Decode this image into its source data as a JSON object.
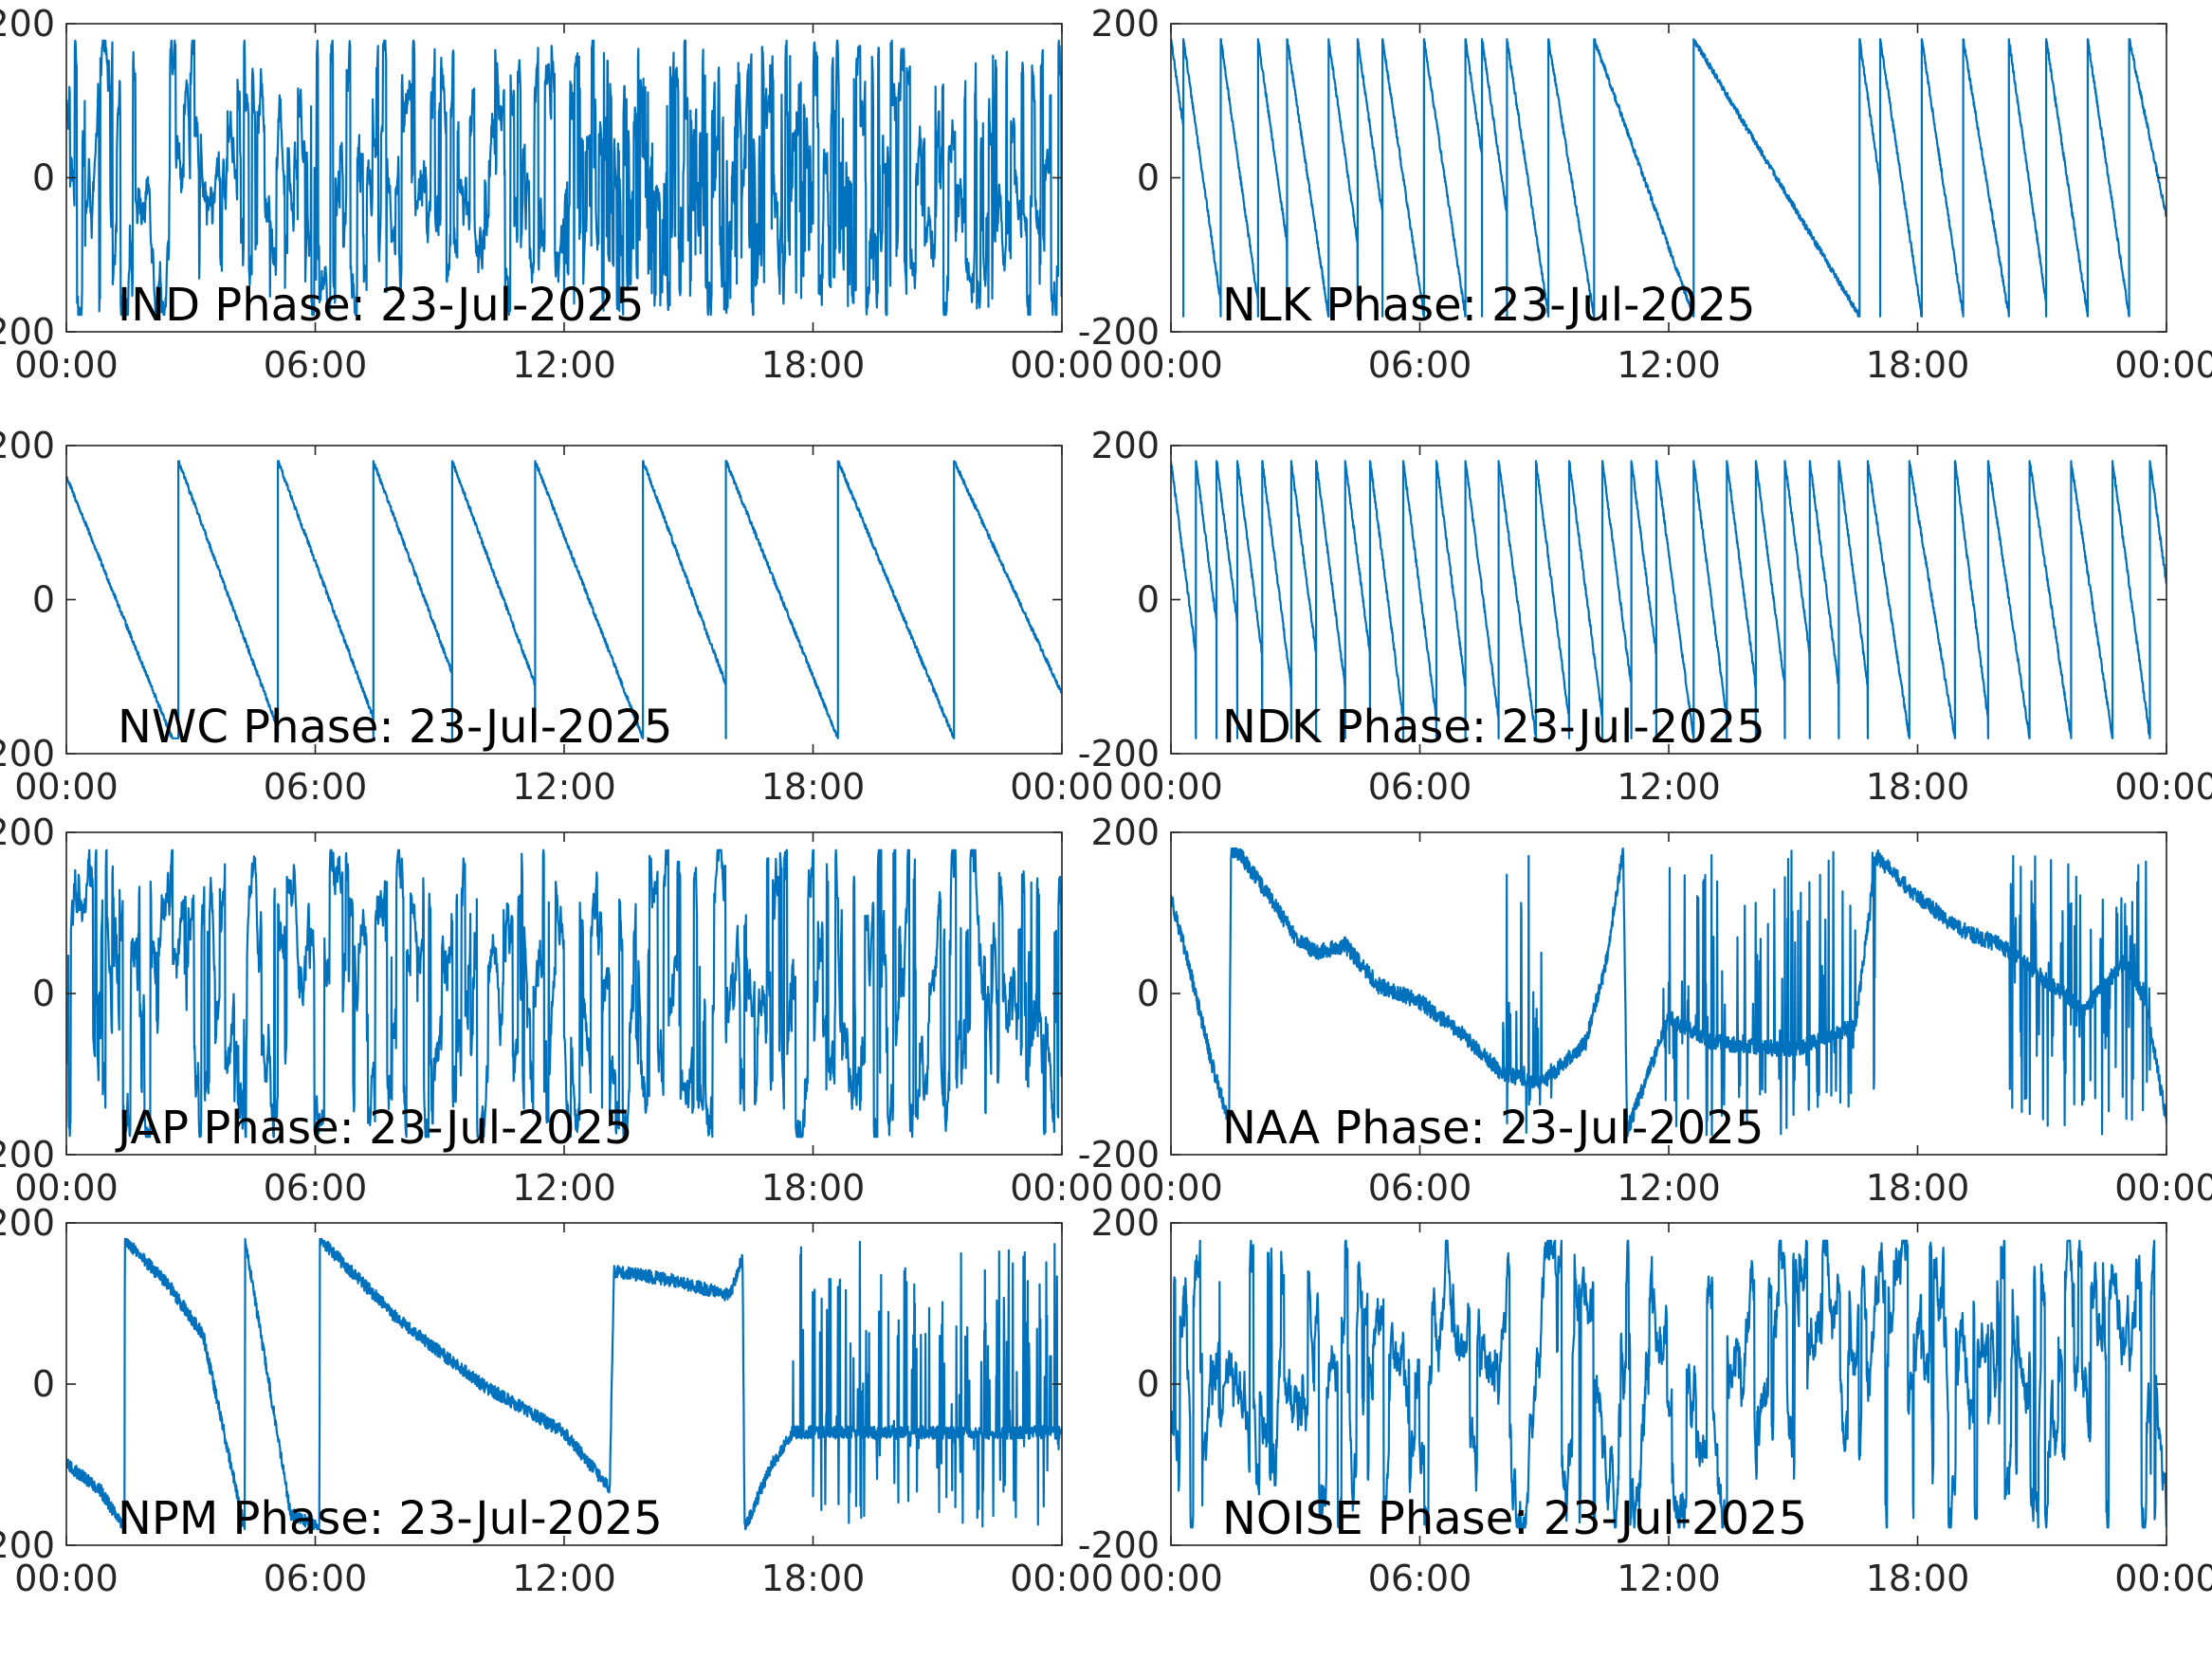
{
  "line_color": "#0072BD",
  "chart_data": [
    {
      "type": "line",
      "label": "IND Phase: 23-Jul-2025",
      "x_ticks": [
        "00:00",
        "06:00",
        "12:00",
        "18:00",
        "00:00"
      ],
      "y_ticks": [
        "-200",
        "0",
        "200"
      ],
      "ylim": [
        -200,
        200
      ],
      "xlim_hours": [
        0,
        24
      ],
      "grid": false,
      "pattern": "dense-noise",
      "segments": [
        {
          "t0": 0,
          "t1": 12,
          "change_rate": 12
        },
        {
          "t0": 12,
          "t1": 19,
          "change_rate": 40
        },
        {
          "t0": 19,
          "t1": 24,
          "change_rate": 20
        }
      ]
    },
    {
      "type": "line",
      "label": "NLK Phase: 23-Jul-2025",
      "x_ticks": [
        "00:00",
        "06:00",
        "12:00",
        "18:00",
        "00:00"
      ],
      "y_ticks": [
        "-200",
        "0",
        "200"
      ],
      "ylim": [
        -200,
        200
      ],
      "xlim_hours": [
        0,
        24
      ],
      "grid": false,
      "pattern": "sawtooth",
      "wrap_times": [
        0.3,
        1.2,
        2.1,
        2.8,
        3.8,
        4.5,
        5.1,
        6.1,
        7.1,
        7.5,
        8.1,
        9.1,
        10.2,
        12.6,
        16.6,
        17.1,
        18.1,
        19.1,
        20.2,
        21.1,
        22.1,
        23.1
      ],
      "drift_per_hour": -380,
      "noise": 4
    },
    {
      "type": "line",
      "label": "NWC Phase: 23-Jul-2025",
      "x_ticks": [
        "00:00",
        "06:00",
        "12:00",
        "18:00",
        "00:00"
      ],
      "y_ticks": [
        "-200",
        "0",
        "200"
      ],
      "ylim": [
        -200,
        200
      ],
      "xlim_hours": [
        0,
        24
      ],
      "grid": false,
      "pattern": "sawtooth",
      "wrap_times": [
        2.7,
        5.1,
        7.4,
        9.3,
        11.3,
        13.9,
        15.9,
        18.6,
        21.4
      ],
      "start_value": 160,
      "drift_per_hour": -145,
      "noise": 3
    },
    {
      "type": "line",
      "label": "NDK Phase: 23-Jul-2025",
      "x_ticks": [
        "00:00",
        "06:00",
        "12:00",
        "18:00",
        "00:00"
      ],
      "y_ticks": [
        "-200",
        "0",
        "200"
      ],
      "ylim": [
        -200,
        200
      ],
      "xlim_hours": [
        0,
        24
      ],
      "grid": false,
      "pattern": "sawtooth",
      "wrap_times": [
        0.6,
        1.1,
        1.6,
        2.2,
        2.9,
        3.5,
        4.2,
        4.8,
        5.6,
        6.4,
        7.1,
        7.9,
        8.8,
        9.6,
        10.4,
        11.1,
        11.7,
        12.6,
        13.4,
        14.1,
        14.8,
        15.4,
        16.1,
        16.8,
        17.8,
        18.9,
        19.7,
        20.7,
        21.7,
        22.7,
        23.6
      ],
      "drift_per_hour": -420,
      "noise": 4
    },
    {
      "type": "line",
      "label": "JAP Phase: 23-Jul-2025",
      "x_ticks": [
        "00:00",
        "06:00",
        "12:00",
        "18:00",
        "00:00"
      ],
      "y_ticks": [
        "-200",
        "0",
        "200"
      ],
      "ylim": [
        -200,
        200
      ],
      "xlim_hours": [
        0,
        24
      ],
      "grid": false,
      "pattern": "dense-noise",
      "segments": [
        {
          "t0": 0,
          "t1": 24,
          "change_rate": 14
        }
      ]
    },
    {
      "type": "line",
      "label": "NAA Phase: 23-Jul-2025",
      "x_ticks": [
        "00:00",
        "06:00",
        "12:00",
        "18:00",
        "00:00"
      ],
      "y_ticks": [
        "-200",
        "0",
        "200"
      ],
      "ylim": [
        -200,
        200
      ],
      "xlim_hours": [
        0,
        24
      ],
      "grid": false,
      "pattern": "piecewise",
      "points": [
        [
          0,
          120
        ],
        [
          0.5,
          20
        ],
        [
          1.0,
          -90
        ],
        [
          1.4,
          -160
        ],
        [
          1.45,
          180
        ],
        [
          1.7,
          170
        ],
        [
          2.5,
          110
        ],
        [
          3.0,
          70
        ],
        [
          3.5,
          50
        ],
        [
          4.2,
          60
        ],
        [
          5.0,
          10
        ],
        [
          6.0,
          -10
        ],
        [
          7.0,
          -50
        ],
        [
          8.0,
          -100
        ],
        [
          9.0,
          -110
        ],
        [
          10.0,
          -60
        ],
        [
          10.5,
          40
        ],
        [
          10.9,
          180
        ],
        [
          11.0,
          -170
        ],
        [
          11.5,
          -100
        ],
        [
          12.0,
          -30
        ],
        [
          13.0,
          -60
        ],
        [
          15.0,
          -70
        ],
        [
          16.5,
          -40
        ],
        [
          17.0,
          170
        ],
        [
          18.0,
          120
        ],
        [
          19.0,
          80
        ],
        [
          20.0,
          60
        ],
        [
          21.0,
          20
        ],
        [
          22.0,
          -20
        ],
        [
          23.0,
          40
        ],
        [
          23.5,
          -10
        ],
        [
          24.0,
          -160
        ]
      ],
      "noisy_ranges": [
        [
          8.0,
          9.2
        ],
        [
          11.8,
          17.0
        ],
        [
          20.2,
          23.6
        ]
      ],
      "noise": 10
    },
    {
      "type": "line",
      "label": "NPM Phase: 23-Jul-2025",
      "x_ticks": [
        "00:00",
        "06:00",
        "12:00",
        "18:00",
        "00:00"
      ],
      "y_ticks": [
        "-200",
        "0",
        "200"
      ],
      "ylim": [
        -200,
        200
      ],
      "xlim_hours": [
        0,
        24
      ],
      "grid": false,
      "pattern": "piecewise",
      "points": [
        [
          0,
          -100
        ],
        [
          0.8,
          -130
        ],
        [
          1.4,
          -180
        ],
        [
          1.41,
          180
        ],
        [
          2.5,
          120
        ],
        [
          3.3,
          60
        ],
        [
          4.3,
          -180
        ],
        [
          4.31,
          180
        ],
        [
          5.4,
          -160
        ],
        [
          6.1,
          -180
        ],
        [
          6.11,
          180
        ],
        [
          8.0,
          80
        ],
        [
          10.0,
          0
        ],
        [
          12.0,
          -60
        ],
        [
          13.1,
          -130
        ],
        [
          13.2,
          140
        ],
        [
          14.5,
          130
        ],
        [
          16.0,
          110
        ],
        [
          16.3,
          160
        ],
        [
          16.35,
          -180
        ],
        [
          17.0,
          -100
        ],
        [
          17.5,
          -60
        ]
      ],
      "noisy_ranges": [
        [
          17.5,
          24.0
        ]
      ],
      "noise": 8
    },
    {
      "type": "line",
      "label": "NOISE Phase: 23-Jul-2025",
      "x_ticks": [
        "00:00",
        "06:00",
        "12:00",
        "18:00",
        "00:00"
      ],
      "y_ticks": [
        "-200",
        "0",
        "200"
      ],
      "ylim": [
        -200,
        200
      ],
      "xlim_hours": [
        0,
        24
      ],
      "grid": false,
      "pattern": "dense-noise",
      "segments": [
        {
          "t0": 0,
          "t1": 24,
          "change_rate": 8
        }
      ]
    }
  ]
}
